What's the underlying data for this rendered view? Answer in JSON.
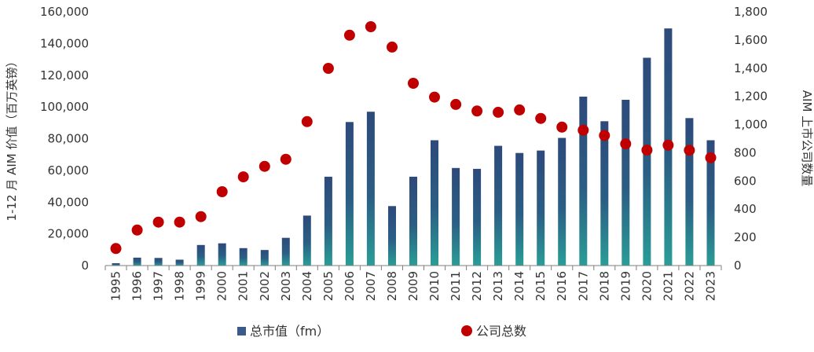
{
  "chart_data": {
    "type": "bar",
    "categories": [
      "1995",
      "1996",
      "1997",
      "1998",
      "1999",
      "2000",
      "2001",
      "2002",
      "2003",
      "2004",
      "2005",
      "2006",
      "2007",
      "2008",
      "2009",
      "2010",
      "2011",
      "2012",
      "2013",
      "2014",
      "2015",
      "2016",
      "2017",
      "2018",
      "2019",
      "2020",
      "2021",
      "2022",
      "2023"
    ],
    "series": [
      {
        "name": "总市值（fm）",
        "type": "bar",
        "axis": "left",
        "values": [
          1500,
          5000,
          4800,
          3700,
          13000,
          14000,
          11000,
          9800,
          17500,
          31500,
          56000,
          90500,
          97000,
          37500,
          56000,
          79000,
          61500,
          61000,
          75500,
          71000,
          72500,
          80500,
          106500,
          91000,
          104500,
          131000,
          149500,
          93000,
          79000
        ]
      },
      {
        "name": "公司总数",
        "type": "scatter",
        "axis": "right",
        "values": [
          121,
          252,
          308,
          308,
          347,
          524,
          629,
          704,
          754,
          1021,
          1399,
          1634,
          1694,
          1550,
          1293,
          1195,
          1143,
          1096,
          1087,
          1104,
          1044,
          982,
          960,
          923,
          863,
          819,
          854,
          818,
          765
        ]
      }
    ],
    "ylabel": "1-12 月 AIM 价值（百万英镑）",
    "y2label": "AIM 上市公司数量",
    "ylim": [
      0,
      160000
    ],
    "y2lim": [
      0,
      1800
    ],
    "yticks": [
      "0",
      "20,000",
      "40,000",
      "60,000",
      "80,000",
      "100,000",
      "120,000",
      "140,000",
      "160,000"
    ],
    "y2ticks": [
      "0",
      "200",
      "400",
      "600",
      "800",
      "1,000",
      "1,200",
      "1,400",
      "1,600",
      "1,800"
    ],
    "grid": false,
    "legend_position": "bottom",
    "colors": {
      "bar_top": "#2d4a7a",
      "bar_bottom": "#2a9d97",
      "dot": "#c00000",
      "legend_bar": "#3a5a8c",
      "axis": "#7f7f7f"
    }
  }
}
